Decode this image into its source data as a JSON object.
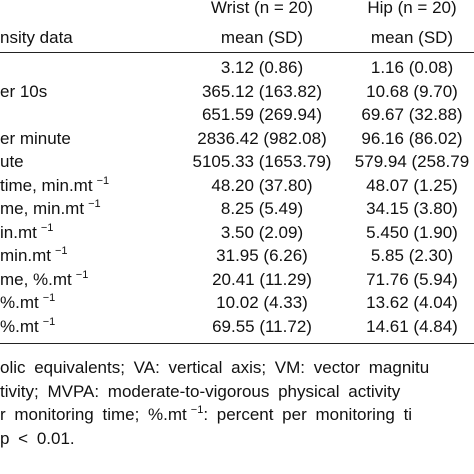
{
  "header": {
    "label": "nsity data",
    "columns": [
      {
        "name": "Wrist (n = 20)",
        "stat": "mean (SD)"
      },
      {
        "name": "Hip (n = 20)",
        "stat": "mean (SD)"
      }
    ]
  },
  "table": {
    "rows": [
      {
        "label": null,
        "sup": null,
        "wrist": "3.12 (0.86)",
        "hip": "1.16 (0.08)"
      },
      {
        "label": "er 10s",
        "sup": null,
        "wrist": "365.12 (163.82)",
        "hip": "10.68 (9.70)"
      },
      {
        "label": null,
        "sup": null,
        "wrist": "651.59 (269.94)",
        "hip": "69.67 (32.88)"
      },
      {
        "label": "er minute",
        "sup": null,
        "wrist": "2836.42 (982.08)",
        "hip": "96.16 (86.02)"
      },
      {
        "label": "ute",
        "sup": null,
        "wrist": "5105.33 (1653.79)",
        "hip": "579.94 (258.79"
      },
      {
        "label": "time, min.mt",
        "sup": "−1",
        "wrist": "48.20 (37.80)",
        "hip": "48.07 (1.25)"
      },
      {
        "label": "me, min.mt",
        "sup": "−1",
        "wrist": "8.25 (5.49)",
        "hip": "34.15 (3.80)"
      },
      {
        "label": "in.mt",
        "sup": "−1",
        "wrist": "3.50 (2.09)",
        "hip": "5.450 (1.90)"
      },
      {
        "label": "min.mt",
        "sup": "−1",
        "wrist": "31.95 (6.26)",
        "hip": "5.85 (2.30)"
      },
      {
        "label": "me, %.mt",
        "sup": "−1",
        "wrist": "20.41 (11.29)",
        "hip": "71.76 (5.94)"
      },
      {
        "label": "%.mt",
        "sup": "−1",
        "wrist": "10.02 (4.33)",
        "hip": "13.62 (4.04)"
      },
      {
        "label": "%.mt",
        "sup": "−1",
        "wrist": "69.55 (11.72)",
        "hip": "14.61 (4.84)"
      }
    ]
  },
  "footnotes": [
    {
      "text": "olic equivalents; VA: vertical axis; VM: vector magnitu",
      "sup": null,
      "rest": null
    },
    {
      "text": "tivity; MVPA: moderate-to-vigorous physical activity",
      "sup": null,
      "rest": null
    },
    {
      "text": "r monitoring time; %.mt",
      "sup": "−1",
      "rest": ": percent per monitoring ti"
    },
    {
      "text": "p < 0.01.",
      "sup": null,
      "rest": null
    }
  ]
}
